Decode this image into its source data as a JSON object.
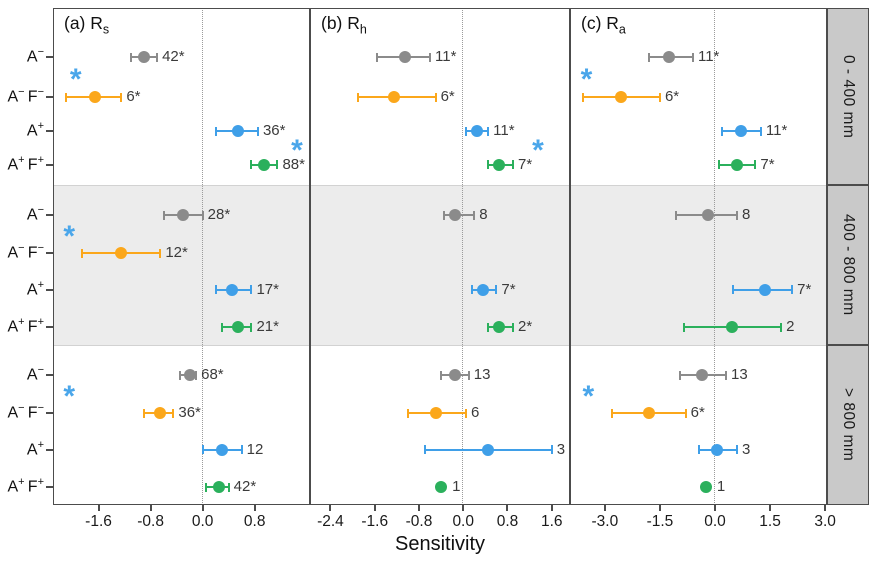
{
  "chart_data": {
    "type": "scatter",
    "title": "Sensitivity forest plot by respiration component and precipitation band",
    "xlabel": "Sensitivity",
    "legend_position": "none",
    "grid": "zero-line-only",
    "treatments": [
      {
        "parts": [
          [
            "A",
            "−"
          ]
        ]
      },
      {
        "parts": [
          [
            "A",
            "−"
          ],
          [
            "F",
            "−"
          ]
        ]
      },
      {
        "parts": [
          [
            "A",
            "+"
          ]
        ]
      },
      {
        "parts": [
          [
            "A",
            "+"
          ],
          [
            "F",
            "+"
          ]
        ]
      }
    ],
    "band_labels": [
      "0 - 400 mm",
      "400 - 800 mm",
      "> 800 mm"
    ],
    "row_colors": [
      "gray",
      "orange",
      "blue",
      "green"
    ],
    "colors": {
      "gray": "#8b8b8b",
      "orange": "#fba71b",
      "blue": "#3f9fe8",
      "green": "#2bb05c",
      "asterisk": "#4aa6ea",
      "band2_bg": "#ececec",
      "strip_bg": "#c9c9c9",
      "border": "#4c4c4c",
      "zero_line": "#9b9b9b"
    },
    "panels": [
      {
        "label": "(a) R",
        "sub": "s",
        "domain": [
          -2.3,
          1.65
        ],
        "tick_values": [
          -1.6,
          -0.8,
          0.0,
          0.8
        ],
        "tick_labels": [
          "-1.6",
          "-0.8",
          "0.0",
          "0.8"
        ],
        "bands": [
          {
            "points": [
              {
                "row": 0,
                "value": -0.9,
                "lo": -1.1,
                "hi": -0.7,
                "n": "42*"
              },
              {
                "row": 1,
                "value": -1.65,
                "lo": -2.1,
                "hi": -1.25,
                "n": "6*"
              },
              {
                "row": 2,
                "value": 0.55,
                "lo": 0.2,
                "hi": 0.85,
                "n": "36*"
              },
              {
                "row": 3,
                "value": 0.95,
                "lo": 0.75,
                "hi": 1.15,
                "n": "88*"
              }
            ],
            "asterisks": [
              {
                "value": -1.95,
                "between": [
                  0,
                  1
                ]
              },
              {
                "value": 1.45,
                "between": [
                  2,
                  3
                ]
              }
            ]
          },
          {
            "points": [
              {
                "row": 0,
                "value": -0.3,
                "lo": -0.6,
                "hi": 0.0,
                "n": "28*"
              },
              {
                "row": 1,
                "value": -1.25,
                "lo": -1.85,
                "hi": -0.65,
                "n": "12*"
              },
              {
                "row": 2,
                "value": 0.45,
                "lo": 0.2,
                "hi": 0.75,
                "n": "17*"
              },
              {
                "row": 3,
                "value": 0.55,
                "lo": 0.3,
                "hi": 0.75,
                "n": "21*"
              }
            ],
            "asterisks": [
              {
                "value": -2.05,
                "between": [
                  0,
                  1
                ]
              }
            ]
          },
          {
            "points": [
              {
                "row": 0,
                "value": -0.2,
                "lo": -0.35,
                "hi": -0.1,
                "n": "68*"
              },
              {
                "row": 1,
                "value": -0.65,
                "lo": -0.9,
                "hi": -0.45,
                "n": "36*"
              },
              {
                "row": 2,
                "value": 0.3,
                "lo": 0.0,
                "hi": 0.6,
                "n": "12"
              },
              {
                "row": 3,
                "value": 0.25,
                "lo": 0.05,
                "hi": 0.4,
                "n": "42*"
              }
            ],
            "asterisks": [
              {
                "value": -2.05,
                "between": [
                  0,
                  1
                ]
              }
            ]
          }
        ]
      },
      {
        "label": "(b) R",
        "sub": "h",
        "domain": [
          -2.77,
          1.93
        ],
        "tick_values": [
          -2.4,
          -1.6,
          -0.8,
          0.0,
          0.8,
          1.6
        ],
        "tick_labels": [
          "-2.4",
          "-1.6",
          "-0.8",
          "0.0",
          "0.8",
          "1.6"
        ],
        "bands": [
          {
            "points": [
              {
                "row": 0,
                "value": -1.05,
                "lo": -1.55,
                "hi": -0.6,
                "n": "11*"
              },
              {
                "row": 1,
                "value": -1.25,
                "lo": -1.9,
                "hi": -0.5,
                "n": "6*"
              },
              {
                "row": 2,
                "value": 0.25,
                "lo": 0.05,
                "hi": 0.45,
                "n": "11*"
              },
              {
                "row": 3,
                "value": 0.65,
                "lo": 0.45,
                "hi": 0.9,
                "n": "7*"
              }
            ],
            "asterisks": [
              {
                "value": 1.35,
                "between": [
                  2,
                  3
                ]
              }
            ]
          },
          {
            "points": [
              {
                "row": 0,
                "value": -0.15,
                "lo": -0.35,
                "hi": 0.2,
                "n": "8"
              },
              {
                "row": 2,
                "value": 0.35,
                "lo": 0.15,
                "hi": 0.6,
                "n": "7*"
              },
              {
                "row": 3,
                "value": 0.65,
                "lo": 0.45,
                "hi": 0.9,
                "n": "2*"
              }
            ],
            "asterisks": []
          },
          {
            "points": [
              {
                "row": 0,
                "value": -0.15,
                "lo": -0.4,
                "hi": 0.1,
                "n": "13"
              },
              {
                "row": 1,
                "value": -0.5,
                "lo": -1.0,
                "hi": 0.05,
                "n": "6"
              },
              {
                "row": 2,
                "value": 0.45,
                "lo": -0.7,
                "hi": 1.6,
                "n": "3"
              },
              {
                "row": 3,
                "value": -0.4,
                "lo": null,
                "hi": null,
                "n": "1"
              }
            ],
            "asterisks": []
          }
        ]
      },
      {
        "label": "(c) R",
        "sub": "a",
        "domain": [
          -3.95,
          3.05
        ],
        "tick_values": [
          -3.0,
          -1.5,
          0.0,
          1.5,
          3.0
        ],
        "tick_labels": [
          "-3.0",
          "-1.5",
          "0.0",
          "1.5",
          "3.0"
        ],
        "bands": [
          {
            "points": [
              {
                "row": 0,
                "value": -1.25,
                "lo": -1.8,
                "hi": -0.6,
                "n": "11*"
              },
              {
                "row": 1,
                "value": -2.55,
                "lo": -3.6,
                "hi": -1.5,
                "n": "6*"
              },
              {
                "row": 2,
                "value": 0.7,
                "lo": 0.2,
                "hi": 1.25,
                "n": "11*"
              },
              {
                "row": 3,
                "value": 0.6,
                "lo": 0.1,
                "hi": 1.1,
                "n": "7*"
              }
            ],
            "asterisks": [
              {
                "value": -3.5,
                "between": [
                  0,
                  1
                ]
              }
            ]
          },
          {
            "points": [
              {
                "row": 0,
                "value": -0.2,
                "lo": -1.05,
                "hi": 0.6,
                "n": "8"
              },
              {
                "row": 2,
                "value": 1.35,
                "lo": 0.5,
                "hi": 2.1,
                "n": "7*"
              },
              {
                "row": 3,
                "value": 0.45,
                "lo": -0.85,
                "hi": 1.8,
                "n": "2"
              }
            ],
            "asterisks": []
          },
          {
            "points": [
              {
                "row": 0,
                "value": -0.35,
                "lo": -0.95,
                "hi": 0.3,
                "n": "13"
              },
              {
                "row": 1,
                "value": -1.8,
                "lo": -2.8,
                "hi": -0.8,
                "n": "6*"
              },
              {
                "row": 2,
                "value": 0.05,
                "lo": -0.45,
                "hi": 0.6,
                "n": "3"
              },
              {
                "row": 3,
                "value": -0.25,
                "lo": null,
                "hi": null,
                "n": "1"
              }
            ],
            "asterisks": [
              {
                "value": -3.45,
                "between": [
                  0,
                  1
                ]
              }
            ]
          }
        ]
      }
    ]
  }
}
